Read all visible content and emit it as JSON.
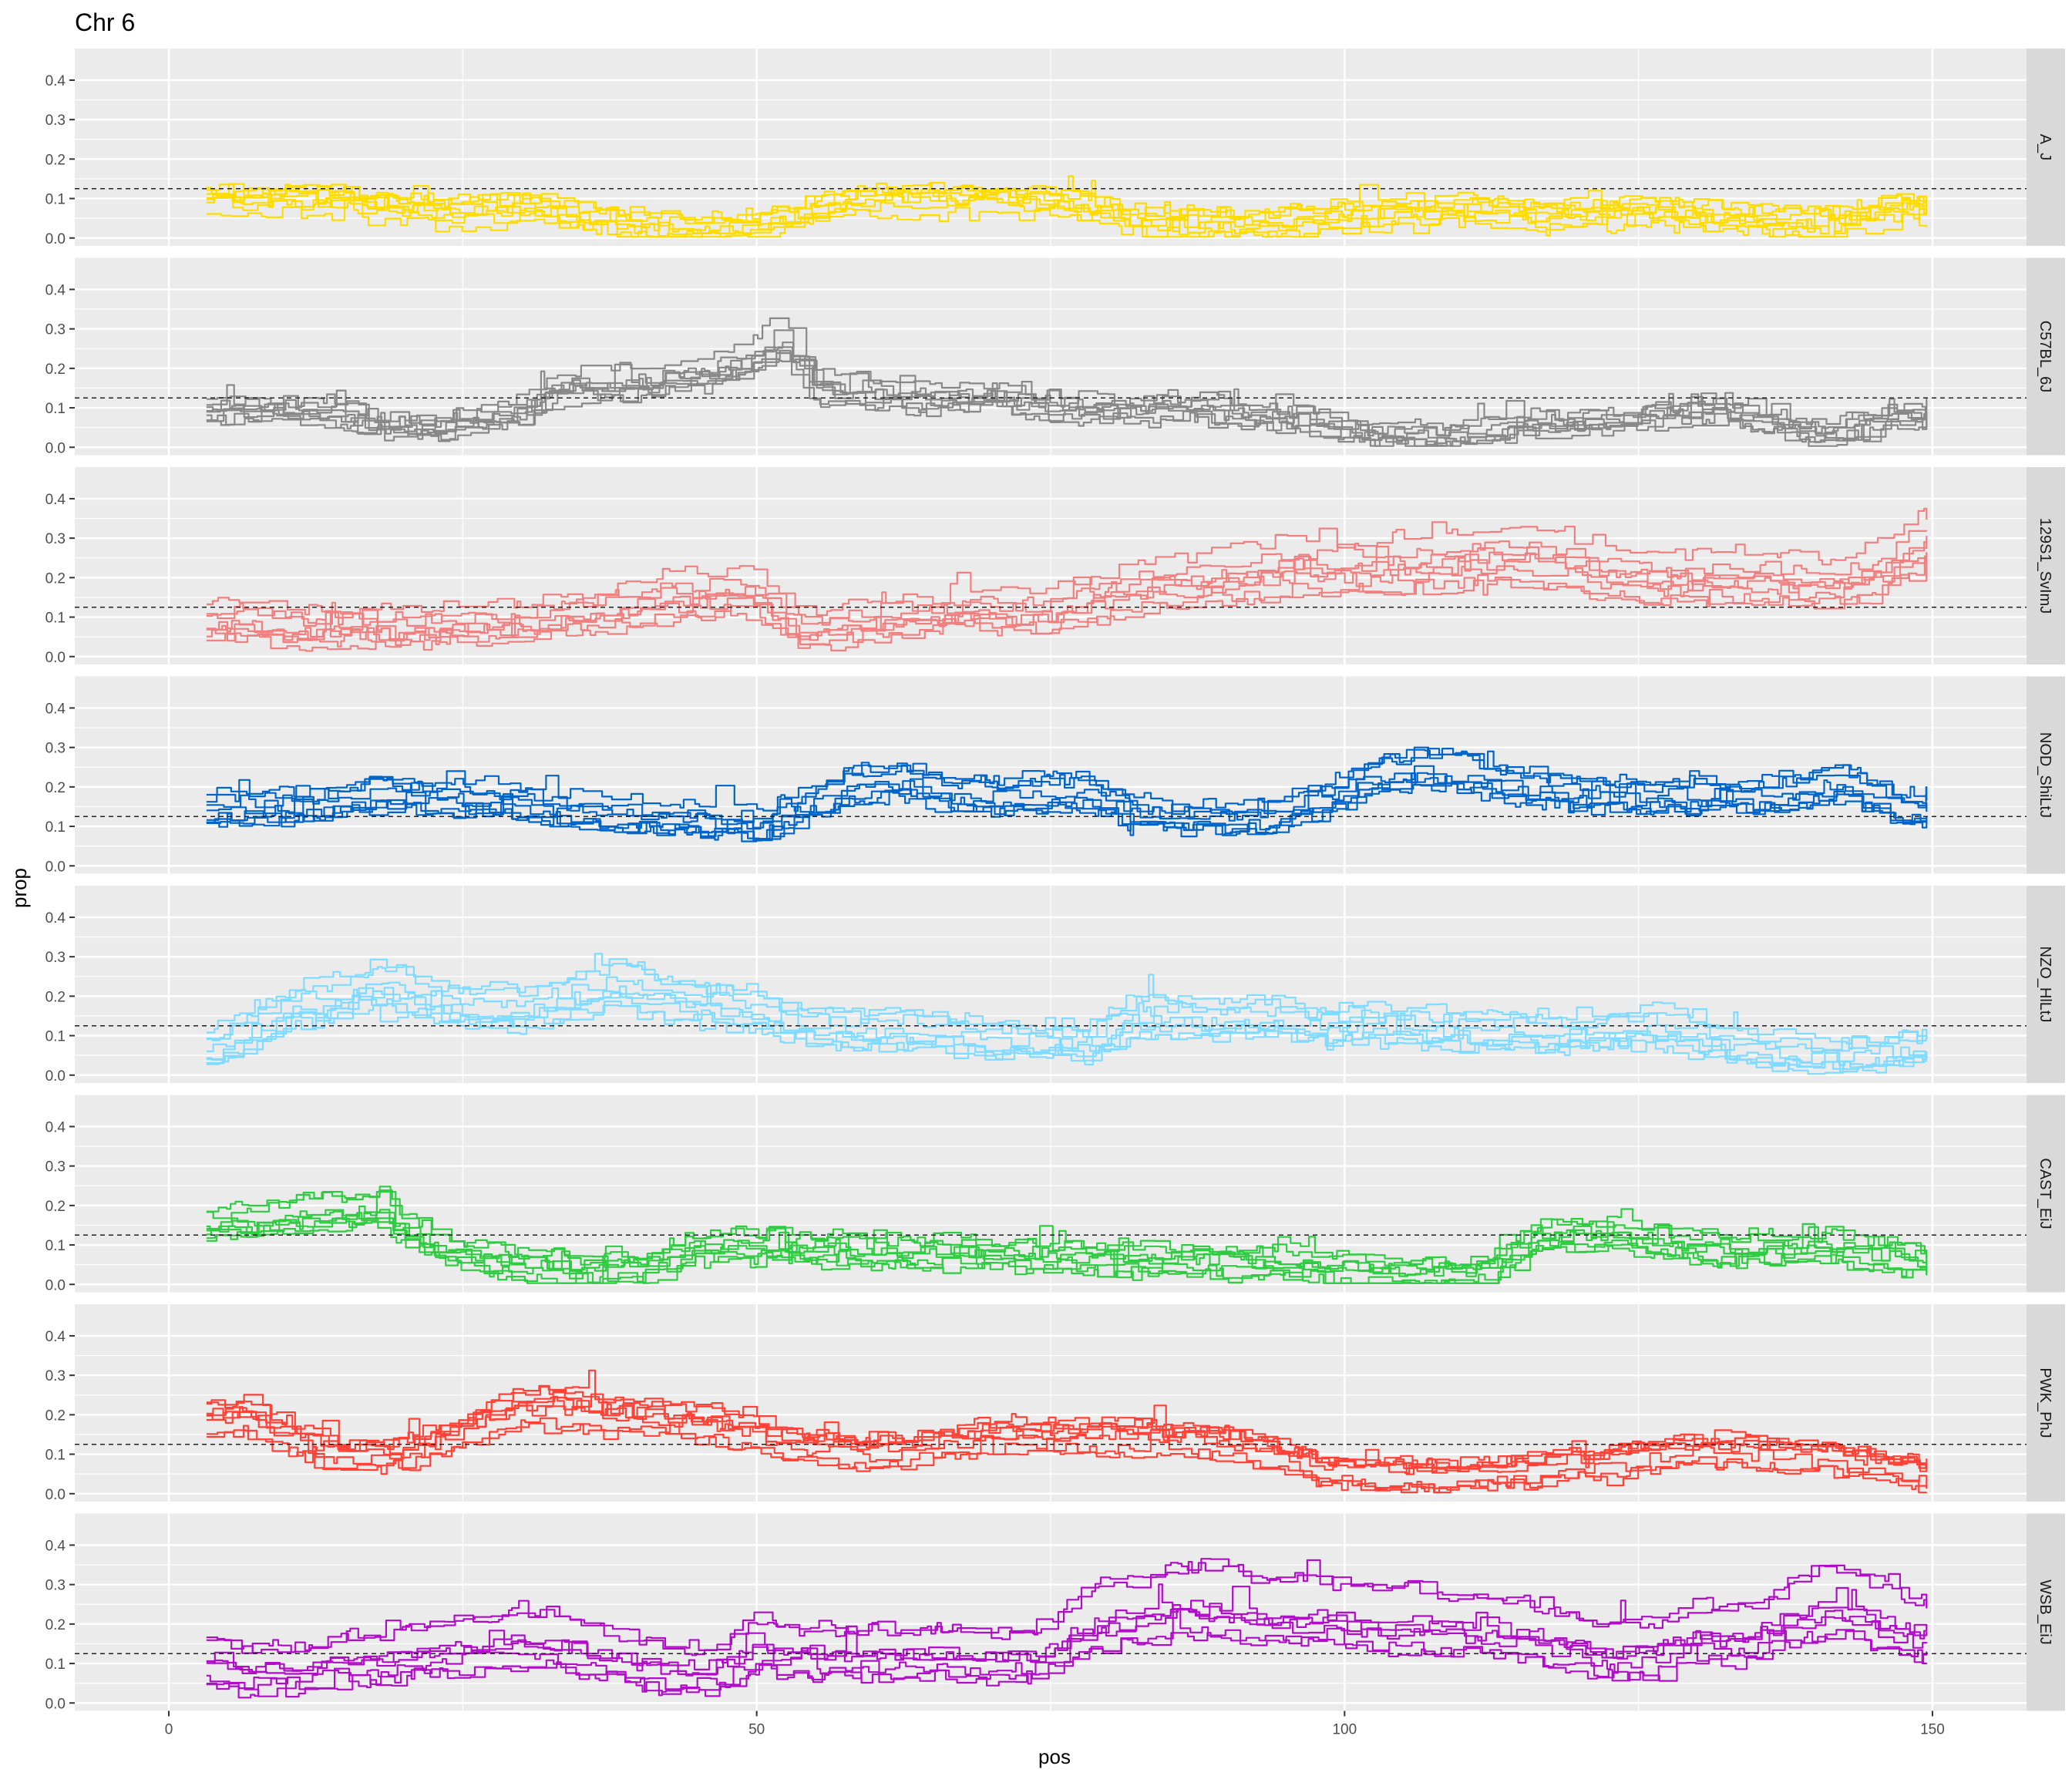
{
  "chart_data": {
    "type": "line",
    "title": "Chr 6",
    "xlabel": "pos",
    "ylabel": "prop",
    "xlim": [
      -8,
      158
    ],
    "ylim": [
      -0.02,
      0.48
    ],
    "x_ticks": [
      0,
      50,
      100,
      150
    ],
    "x_tick_labels": [
      "0",
      "50",
      "100",
      "150"
    ],
    "y_ticks": [
      0.0,
      0.1,
      0.2,
      0.3,
      0.4
    ],
    "y_tick_labels": [
      "0.0",
      "0.1",
      "0.2",
      "0.3",
      "0.4"
    ],
    "reference_line": 0.125,
    "grid": true,
    "x_start": 3.2,
    "x_end": 149.5,
    "lines_per_panel": 8,
    "panels": [
      {
        "name": "A_J",
        "color": "#FFDC00",
        "profile": [
          [
            3,
            0.12
          ],
          [
            6,
            0.11
          ],
          [
            10,
            0.12
          ],
          [
            15,
            0.11
          ],
          [
            20,
            0.09
          ],
          [
            25,
            0.08
          ],
          [
            30,
            0.09
          ],
          [
            35,
            0.07
          ],
          [
            40,
            0.04
          ],
          [
            45,
            0.035
          ],
          [
            50,
            0.045
          ],
          [
            54,
            0.08
          ],
          [
            58,
            0.11
          ],
          [
            62,
            0.12
          ],
          [
            66,
            0.12
          ],
          [
            70,
            0.12
          ],
          [
            74,
            0.11
          ],
          [
            78,
            0.09
          ],
          [
            82,
            0.06
          ],
          [
            86,
            0.05
          ],
          [
            90,
            0.05
          ],
          [
            94,
            0.05
          ],
          [
            98,
            0.07
          ],
          [
            102,
            0.08
          ],
          [
            106,
            0.08
          ],
          [
            110,
            0.09
          ],
          [
            114,
            0.08
          ],
          [
            118,
            0.07
          ],
          [
            122,
            0.08
          ],
          [
            126,
            0.08
          ],
          [
            130,
            0.07
          ],
          [
            134,
            0.06
          ],
          [
            138,
            0.05
          ],
          [
            142,
            0.05
          ],
          [
            146,
            0.09
          ],
          [
            150,
            0.09
          ]
        ]
      },
      {
        "name": "C57BL_6J",
        "color": "#888888",
        "profile": [
          [
            3,
            0.11
          ],
          [
            6,
            0.12
          ],
          [
            10,
            0.11
          ],
          [
            14,
            0.11
          ],
          [
            18,
            0.07
          ],
          [
            22,
            0.07
          ],
          [
            26,
            0.09
          ],
          [
            30,
            0.11
          ],
          [
            33,
            0.17
          ],
          [
            37,
            0.17
          ],
          [
            41,
            0.18
          ],
          [
            45,
            0.2
          ],
          [
            49,
            0.23
          ],
          [
            52,
            0.28
          ],
          [
            55,
            0.17
          ],
          [
            60,
            0.15
          ],
          [
            65,
            0.14
          ],
          [
            70,
            0.14
          ],
          [
            75,
            0.12
          ],
          [
            80,
            0.11
          ],
          [
            84,
            0.12
          ],
          [
            88,
            0.11
          ],
          [
            92,
            0.1
          ],
          [
            96,
            0.09
          ],
          [
            100,
            0.06
          ],
          [
            104,
            0.05
          ],
          [
            108,
            0.05
          ],
          [
            112,
            0.06
          ],
          [
            116,
            0.08
          ],
          [
            120,
            0.08
          ],
          [
            124,
            0.09
          ],
          [
            128,
            0.11
          ],
          [
            132,
            0.11
          ],
          [
            136,
            0.09
          ],
          [
            140,
            0.05
          ],
          [
            144,
            0.08
          ],
          [
            148,
            0.1
          ],
          [
            150,
            0.09
          ]
        ]
      },
      {
        "name": "129S1_SvImJ",
        "color": "#F08080",
        "profile": [
          [
            3,
            0.09
          ],
          [
            6,
            0.1
          ],
          [
            10,
            0.08
          ],
          [
            14,
            0.08
          ],
          [
            18,
            0.08
          ],
          [
            22,
            0.08
          ],
          [
            26,
            0.09
          ],
          [
            30,
            0.09
          ],
          [
            34,
            0.11
          ],
          [
            38,
            0.13
          ],
          [
            42,
            0.15
          ],
          [
            46,
            0.16
          ],
          [
            50,
            0.16
          ],
          [
            53,
            0.08
          ],
          [
            56,
            0.08
          ],
          [
            60,
            0.1
          ],
          [
            64,
            0.11
          ],
          [
            68,
            0.12
          ],
          [
            72,
            0.11
          ],
          [
            76,
            0.13
          ],
          [
            80,
            0.16
          ],
          [
            84,
            0.19
          ],
          [
            88,
            0.19
          ],
          [
            92,
            0.21
          ],
          [
            96,
            0.23
          ],
          [
            100,
            0.22
          ],
          [
            104,
            0.23
          ],
          [
            108,
            0.24
          ],
          [
            112,
            0.25
          ],
          [
            116,
            0.25
          ],
          [
            120,
            0.23
          ],
          [
            124,
            0.2
          ],
          [
            128,
            0.19
          ],
          [
            132,
            0.2
          ],
          [
            136,
            0.2
          ],
          [
            140,
            0.18
          ],
          [
            144,
            0.2
          ],
          [
            148,
            0.27
          ],
          [
            150,
            0.28
          ]
        ]
      },
      {
        "name": "NOD_ShiLtJ",
        "color": "#0064C9",
        "profile": [
          [
            3,
            0.15
          ],
          [
            6,
            0.16
          ],
          [
            10,
            0.16
          ],
          [
            14,
            0.18
          ],
          [
            18,
            0.2
          ],
          [
            22,
            0.19
          ],
          [
            26,
            0.18
          ],
          [
            30,
            0.17
          ],
          [
            34,
            0.15
          ],
          [
            38,
            0.14
          ],
          [
            42,
            0.13
          ],
          [
            46,
            0.12
          ],
          [
            50,
            0.11
          ],
          [
            54,
            0.16
          ],
          [
            58,
            0.22
          ],
          [
            62,
            0.23
          ],
          [
            66,
            0.2
          ],
          [
            70,
            0.19
          ],
          [
            74,
            0.2
          ],
          [
            78,
            0.2
          ],
          [
            82,
            0.14
          ],
          [
            86,
            0.13
          ],
          [
            90,
            0.13
          ],
          [
            94,
            0.14
          ],
          [
            98,
            0.18
          ],
          [
            102,
            0.24
          ],
          [
            106,
            0.26
          ],
          [
            110,
            0.25
          ],
          [
            114,
            0.22
          ],
          [
            118,
            0.2
          ],
          [
            122,
            0.19
          ],
          [
            126,
            0.19
          ],
          [
            130,
            0.2
          ],
          [
            134,
            0.19
          ],
          [
            138,
            0.2
          ],
          [
            142,
            0.23
          ],
          [
            146,
            0.17
          ],
          [
            150,
            0.15
          ]
        ]
      },
      {
        "name": "NZO_HlLtJ",
        "color": "#7FDBFF",
        "profile": [
          [
            3,
            0.07
          ],
          [
            6,
            0.11
          ],
          [
            10,
            0.17
          ],
          [
            14,
            0.19
          ],
          [
            18,
            0.23
          ],
          [
            22,
            0.19
          ],
          [
            26,
            0.17
          ],
          [
            30,
            0.17
          ],
          [
            34,
            0.2
          ],
          [
            38,
            0.23
          ],
          [
            42,
            0.2
          ],
          [
            46,
            0.18
          ],
          [
            50,
            0.16
          ],
          [
            54,
            0.13
          ],
          [
            58,
            0.12
          ],
          [
            62,
            0.12
          ],
          [
            66,
            0.11
          ],
          [
            70,
            0.1
          ],
          [
            74,
            0.09
          ],
          [
            78,
            0.09
          ],
          [
            82,
            0.15
          ],
          [
            86,
            0.15
          ],
          [
            90,
            0.14
          ],
          [
            94,
            0.15
          ],
          [
            98,
            0.13
          ],
          [
            102,
            0.13
          ],
          [
            106,
            0.12
          ],
          [
            110,
            0.12
          ],
          [
            114,
            0.12
          ],
          [
            118,
            0.11
          ],
          [
            122,
            0.12
          ],
          [
            126,
            0.13
          ],
          [
            130,
            0.1
          ],
          [
            134,
            0.08
          ],
          [
            138,
            0.06
          ],
          [
            142,
            0.06
          ],
          [
            146,
            0.07
          ],
          [
            150,
            0.08
          ]
        ]
      },
      {
        "name": "CAST_EiJ",
        "color": "#2ECC40",
        "profile": [
          [
            3,
            0.15
          ],
          [
            6,
            0.16
          ],
          [
            10,
            0.18
          ],
          [
            14,
            0.19
          ],
          [
            18,
            0.2
          ],
          [
            21,
            0.12
          ],
          [
            24,
            0.08
          ],
          [
            28,
            0.05
          ],
          [
            32,
            0.04
          ],
          [
            36,
            0.03
          ],
          [
            40,
            0.04
          ],
          [
            44,
            0.09
          ],
          [
            48,
            0.1
          ],
          [
            52,
            0.09
          ],
          [
            56,
            0.09
          ],
          [
            60,
            0.08
          ],
          [
            64,
            0.08
          ],
          [
            68,
            0.08
          ],
          [
            72,
            0.07
          ],
          [
            76,
            0.07
          ],
          [
            80,
            0.06
          ],
          [
            84,
            0.06
          ],
          [
            88,
            0.06
          ],
          [
            92,
            0.05
          ],
          [
            96,
            0.05
          ],
          [
            100,
            0.03
          ],
          [
            104,
            0.02
          ],
          [
            108,
            0.02
          ],
          [
            112,
            0.03
          ],
          [
            116,
            0.12
          ],
          [
            120,
            0.13
          ],
          [
            124,
            0.12
          ],
          [
            128,
            0.1
          ],
          [
            132,
            0.09
          ],
          [
            136,
            0.09
          ],
          [
            140,
            0.1
          ],
          [
            144,
            0.08
          ],
          [
            148,
            0.06
          ],
          [
            150,
            0.06
          ]
        ]
      },
      {
        "name": "PWK_PhJ",
        "color": "#FF4136",
        "profile": [
          [
            3,
            0.19
          ],
          [
            6,
            0.2
          ],
          [
            10,
            0.15
          ],
          [
            14,
            0.1
          ],
          [
            18,
            0.1
          ],
          [
            22,
            0.12
          ],
          [
            26,
            0.18
          ],
          [
            30,
            0.22
          ],
          [
            34,
            0.22
          ],
          [
            38,
            0.2
          ],
          [
            42,
            0.19
          ],
          [
            46,
            0.18
          ],
          [
            50,
            0.15
          ],
          [
            54,
            0.12
          ],
          [
            58,
            0.11
          ],
          [
            62,
            0.11
          ],
          [
            66,
            0.13
          ],
          [
            70,
            0.15
          ],
          [
            74,
            0.15
          ],
          [
            78,
            0.15
          ],
          [
            82,
            0.15
          ],
          [
            86,
            0.14
          ],
          [
            90,
            0.13
          ],
          [
            94,
            0.1
          ],
          [
            98,
            0.06
          ],
          [
            102,
            0.05
          ],
          [
            106,
            0.05
          ],
          [
            110,
            0.05
          ],
          [
            114,
            0.06
          ],
          [
            118,
            0.07
          ],
          [
            122,
            0.08
          ],
          [
            126,
            0.1
          ],
          [
            130,
            0.12
          ],
          [
            134,
            0.11
          ],
          [
            138,
            0.1
          ],
          [
            142,
            0.09
          ],
          [
            146,
            0.06
          ],
          [
            150,
            0.05
          ]
        ]
      },
      {
        "name": "WSB_EiJ",
        "color": "#B10DC9",
        "profile": [
          [
            3,
            0.1
          ],
          [
            6,
            0.08
          ],
          [
            10,
            0.08
          ],
          [
            14,
            0.1
          ],
          [
            18,
            0.11
          ],
          [
            22,
            0.13
          ],
          [
            26,
            0.14
          ],
          [
            30,
            0.16
          ],
          [
            34,
            0.14
          ],
          [
            38,
            0.11
          ],
          [
            42,
            0.08
          ],
          [
            46,
            0.08
          ],
          [
            50,
            0.14
          ],
          [
            54,
            0.12
          ],
          [
            58,
            0.12
          ],
          [
            62,
            0.12
          ],
          [
            66,
            0.12
          ],
          [
            70,
            0.11
          ],
          [
            74,
            0.12
          ],
          [
            78,
            0.2
          ],
          [
            82,
            0.22
          ],
          [
            86,
            0.25
          ],
          [
            90,
            0.24
          ],
          [
            94,
            0.22
          ],
          [
            98,
            0.22
          ],
          [
            102,
            0.2
          ],
          [
            106,
            0.2
          ],
          [
            110,
            0.19
          ],
          [
            114,
            0.18
          ],
          [
            118,
            0.16
          ],
          [
            122,
            0.12
          ],
          [
            126,
            0.13
          ],
          [
            130,
            0.17
          ],
          [
            134,
            0.16
          ],
          [
            138,
            0.22
          ],
          [
            142,
            0.25
          ],
          [
            146,
            0.2
          ],
          [
            150,
            0.17
          ]
        ]
      }
    ]
  }
}
